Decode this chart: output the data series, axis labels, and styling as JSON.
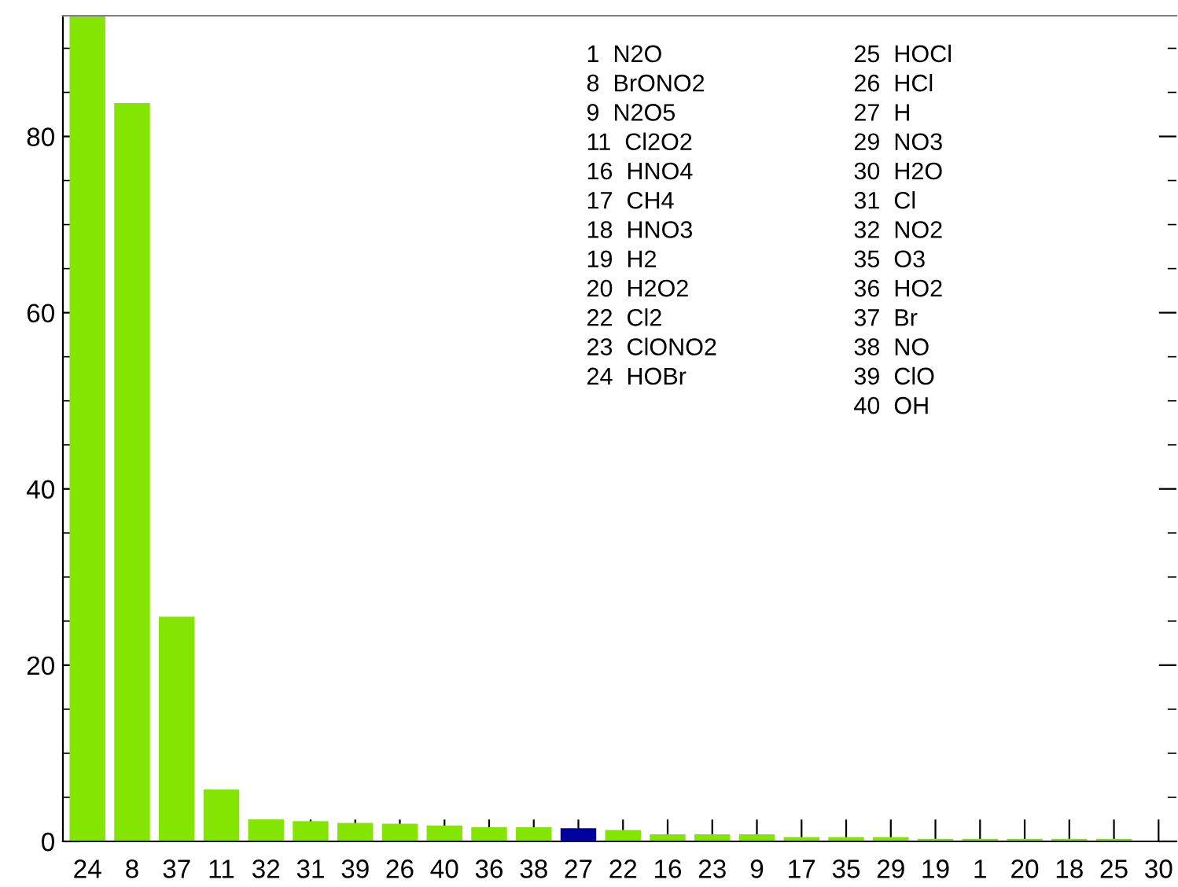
{
  "chart_data": {
    "type": "bar",
    "categories": [
      "24",
      "8",
      "37",
      "11",
      "32",
      "31",
      "39",
      "26",
      "40",
      "36",
      "38",
      "27",
      "22",
      "16",
      "23",
      "9",
      "17",
      "35",
      "29",
      "19",
      "1",
      "20",
      "18",
      "25",
      "30"
    ],
    "values": [
      93.7,
      83.8,
      25.5,
      5.9,
      2.5,
      2.3,
      2.1,
      2.0,
      1.8,
      1.6,
      1.6,
      1.5,
      1.3,
      0.8,
      0.8,
      0.8,
      0.5,
      0.5,
      0.5,
      0.3,
      0.3,
      0.3,
      0.3,
      0.3,
      null
    ],
    "colors": [
      "#84e600",
      "#84e600",
      "#84e600",
      "#84e600",
      "#84e600",
      "#84e600",
      "#84e600",
      "#84e600",
      "#84e600",
      "#84e600",
      "#84e600",
      "#0000a0",
      "#84e600",
      "#84e600",
      "#84e600",
      "#84e600",
      "#84e600",
      "#84e600",
      "#84e600",
      "#84e600",
      "#84e600",
      "#84e600",
      "#84e600",
      "#84e600",
      "#84e600"
    ],
    "ylim": [
      0,
      93.7
    ],
    "yticks": [
      0,
      20,
      40,
      60,
      80
    ],
    "grid": false,
    "legend": false,
    "annotations": [
      "1  N2O",
      "8  BrONO2",
      "9  N2O5",
      "11  Cl2O2",
      "16  HNO4",
      "17  CH4",
      "18  HNO3",
      "19  H2",
      "20  H2O2",
      "22  Cl2",
      "23  ClONO2",
      "24  HOBr",
      "25  HOCl",
      "26  HCl",
      "27  H",
      "29  NO3",
      "30  H2O",
      "31  Cl",
      "32  NO2",
      "35  O3",
      "36  HO2",
      "37  Br",
      "38  NO",
      "39  ClO",
      "40  OH"
    ]
  }
}
